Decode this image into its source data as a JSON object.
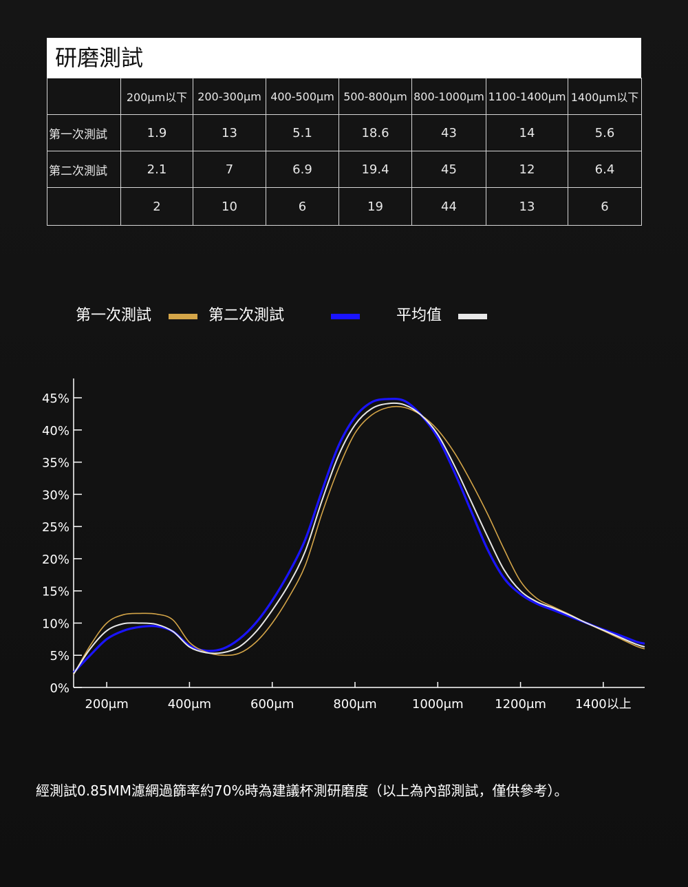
{
  "table": {
    "title": "研磨測試",
    "headers": [
      "",
      "200μm以下",
      "200-300μm",
      "400-500μm",
      "500-800μm",
      "800-1000μm",
      "1100-1400μm",
      "1400μm以下"
    ],
    "rows": [
      {
        "label": "第一次測試",
        "values": [
          "1.9",
          "13",
          "5.1",
          "18.6",
          "43",
          "14",
          "5.6"
        ]
      },
      {
        "label": "第二次測試",
        "values": [
          "2.1",
          "7",
          "6.9",
          "19.4",
          "45",
          "12",
          "6.4"
        ]
      },
      {
        "label": "",
        "values": [
          "2",
          "10",
          "6",
          "19",
          "44",
          "13",
          "6"
        ]
      }
    ]
  },
  "legend": {
    "items": [
      {
        "label": "第一次測試",
        "color": "#d4a548"
      },
      {
        "label": "第二次測試",
        "color": "#1a14ff"
      },
      {
        "label": "平均值",
        "color": "#e8e8e8"
      }
    ]
  },
  "chart_data": {
    "type": "line",
    "smooth": true,
    "y_tick_labels": [
      "0%",
      "5%",
      "10%",
      "15%",
      "20%",
      "25%",
      "30%",
      "35%",
      "40%",
      "45%"
    ],
    "y_tick_values": [
      0,
      5,
      10,
      15,
      20,
      25,
      30,
      35,
      40,
      45
    ],
    "ylim": [
      0,
      48
    ],
    "x_tick_labels": [
      "200μm",
      "400μm",
      "600μm",
      "800μm",
      "1000μm",
      "1200μm",
      "1400以上"
    ],
    "x_tick_values": [
      200,
      400,
      600,
      800,
      1000,
      1200,
      1400
    ],
    "xlim": [
      120,
      1500
    ],
    "series": [
      {
        "name": "第一次測試",
        "color": "#d4a548",
        "x": [
          120,
          160,
          200,
          240,
          280,
          320,
          360,
          400,
          440,
          480,
          520,
          560,
          600,
          640,
          680,
          720,
          760,
          800,
          840,
          880,
          920,
          960,
          1000,
          1040,
          1080,
          1120,
          1160,
          1200,
          1240,
          1280,
          1320,
          1360,
          1400,
          1440,
          1480,
          1500
        ],
        "y": [
          2,
          6.5,
          10,
          11.3,
          11.5,
          11.4,
          10.5,
          7,
          5.5,
          5,
          5.3,
          7,
          10,
          14,
          19,
          27,
          34,
          39.5,
          42.3,
          43.5,
          43.5,
          42.3,
          40,
          36.5,
          32,
          27,
          21.5,
          16.5,
          13.8,
          12.5,
          11.3,
          10,
          8.8,
          7.6,
          6.4,
          6
        ]
      },
      {
        "name": "第二次測試",
        "color": "#1a14ff",
        "x": [
          120,
          160,
          200,
          240,
          280,
          320,
          360,
          400,
          440,
          480,
          520,
          560,
          600,
          640,
          680,
          720,
          760,
          800,
          840,
          880,
          920,
          960,
          1000,
          1040,
          1080,
          1120,
          1160,
          1200,
          1240,
          1280,
          1320,
          1360,
          1400,
          1440,
          1480,
          1500
        ],
        "y": [
          2.3,
          5,
          7.5,
          8.8,
          9.4,
          9.5,
          8.7,
          6.5,
          5.7,
          6,
          7.5,
          10,
          13.5,
          17.8,
          23,
          30.5,
          37.5,
          42,
          44.3,
          44.8,
          44.5,
          42.3,
          38.8,
          33.5,
          27.5,
          21.5,
          17,
          14.5,
          13,
          12,
          11,
          10,
          9,
          8.1,
          7.1,
          6.8
        ]
      },
      {
        "name": "平均值",
        "color": "#e8e8e8",
        "x": [
          120,
          160,
          200,
          240,
          280,
          320,
          360,
          400,
          440,
          480,
          520,
          560,
          600,
          640,
          680,
          720,
          760,
          800,
          840,
          880,
          920,
          960,
          1000,
          1040,
          1080,
          1120,
          1160,
          1200,
          1240,
          1280,
          1320,
          1360,
          1400,
          1440,
          1480,
          1500
        ],
        "y": [
          2.1,
          6,
          8.8,
          9.9,
          10,
          9.8,
          8.7,
          6.3,
          5.4,
          5.4,
          6.3,
          8.6,
          12,
          16,
          21.2,
          29,
          36,
          40.8,
          43.3,
          44.1,
          43.9,
          42.3,
          39.3,
          34.5,
          29,
          23.5,
          18.3,
          15,
          13.3,
          12.3,
          11.2,
          10,
          8.9,
          7.8,
          6.7,
          6.3
        ]
      }
    ]
  },
  "footnote": "經測試0.85MM濾網過篩率約70%時為建議杯測研磨度（以上為內部測試，僅供參考）。"
}
